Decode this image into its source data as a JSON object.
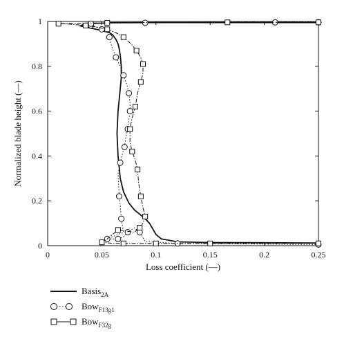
{
  "chart_data": {
    "type": "line",
    "xlabel": "Loss coefficient (—)",
    "ylabel": "Normalized blade height (—)",
    "xlim": [
      0,
      0.25
    ],
    "ylim": [
      0,
      1
    ],
    "xticks": [
      "0",
      "0.05",
      "0.1",
      "0.15",
      "0.2",
      "0.25"
    ],
    "yticks": [
      "0",
      "0.2",
      "0.4",
      "0.6",
      "0.8",
      "1"
    ],
    "grid": false,
    "legend_position": "bottom-left, below plot",
    "series": [
      {
        "name": "Basis",
        "name_sub": "2A",
        "marker": "none",
        "style": "solid",
        "points": [
          [
            0.25,
            0.012
          ],
          [
            0.2,
            0.013
          ],
          [
            0.15,
            0.014
          ],
          [
            0.12,
            0.017
          ],
          [
            0.105,
            0.03
          ],
          [
            0.1,
            0.05
          ],
          [
            0.097,
            0.075
          ],
          [
            0.094,
            0.1
          ],
          [
            0.09,
            0.12
          ],
          [
            0.085,
            0.14
          ],
          [
            0.08,
            0.16
          ],
          [
            0.075,
            0.19
          ],
          [
            0.07,
            0.24
          ],
          [
            0.067,
            0.3
          ],
          [
            0.065,
            0.4
          ],
          [
            0.064,
            0.5
          ],
          [
            0.065,
            0.6
          ],
          [
            0.067,
            0.7
          ],
          [
            0.068,
            0.75
          ],
          [
            0.068,
            0.8
          ],
          [
            0.067,
            0.85
          ],
          [
            0.066,
            0.88
          ],
          [
            0.065,
            0.9
          ],
          [
            0.063,
            0.92
          ],
          [
            0.06,
            0.94
          ],
          [
            0.057,
            0.95
          ],
          [
            0.05,
            0.96
          ],
          [
            0.04,
            0.97
          ],
          [
            0.035,
            0.975
          ],
          [
            0.03,
            0.98
          ],
          [
            0.035,
            0.99
          ],
          [
            0.06,
            0.994
          ],
          [
            0.1,
            0.995
          ],
          [
            0.25,
            0.995
          ]
        ]
      },
      {
        "name": "Bow",
        "name_sub": "F13g1",
        "marker": "circle",
        "style": "dotted",
        "points": [
          [
            0.25,
            0.005
          ],
          [
            0.17,
            0.008
          ],
          [
            0.12,
            0.01
          ],
          [
            0.09,
            0.018
          ],
          [
            0.085,
            0.06
          ],
          [
            0.08,
            0.08
          ],
          [
            0.074,
            0.06
          ],
          [
            0.07,
            0.04
          ],
          [
            0.065,
            0.03
          ],
          [
            0.06,
            0.03
          ],
          [
            0.055,
            0.03
          ],
          [
            0.07,
            0.06
          ],
          [
            0.068,
            0.12
          ],
          [
            0.067,
            0.18
          ],
          [
            0.066,
            0.22
          ],
          [
            0.065,
            0.32
          ],
          [
            0.067,
            0.37
          ],
          [
            0.069,
            0.41
          ],
          [
            0.071,
            0.44
          ],
          [
            0.072,
            0.48
          ],
          [
            0.074,
            0.52
          ],
          [
            0.075,
            0.56
          ],
          [
            0.076,
            0.6
          ],
          [
            0.076,
            0.64
          ],
          [
            0.075,
            0.68
          ],
          [
            0.073,
            0.72
          ],
          [
            0.07,
            0.76
          ],
          [
            0.067,
            0.8
          ],
          [
            0.063,
            0.84
          ],
          [
            0.059,
            0.89
          ],
          [
            0.057,
            0.93
          ],
          [
            0.055,
            0.95
          ],
          [
            0.05,
            0.965
          ],
          [
            0.045,
            0.975
          ],
          [
            0.04,
            0.982
          ],
          [
            0.036,
            0.987
          ],
          [
            0.04,
            0.99
          ],
          [
            0.06,
            0.993
          ],
          [
            0.09,
            0.994
          ],
          [
            0.133,
            0.995
          ],
          [
            0.21,
            0.996
          ],
          [
            0.25,
            0.996
          ]
        ]
      },
      {
        "name": "Bow",
        "name_sub": "F32g",
        "marker": "square",
        "style": "dashdot",
        "points": [
          [
            0.25,
            0.01
          ],
          [
            0.2,
            0.01
          ],
          [
            0.15,
            0.01
          ],
          [
            0.12,
            0.01
          ],
          [
            0.1,
            0.01
          ],
          [
            0.08,
            0.01
          ],
          [
            0.07,
            0.01
          ],
          [
            0.06,
            0.01
          ],
          [
            0.05,
            0.015
          ],
          [
            0.055,
            0.03
          ],
          [
            0.065,
            0.07
          ],
          [
            0.08,
            0.06
          ],
          [
            0.085,
            0.08
          ],
          [
            0.088,
            0.1
          ],
          [
            0.09,
            0.13
          ],
          [
            0.088,
            0.17
          ],
          [
            0.086,
            0.22
          ],
          [
            0.084,
            0.28
          ],
          [
            0.083,
            0.34
          ],
          [
            0.081,
            0.38
          ],
          [
            0.078,
            0.42
          ],
          [
            0.076,
            0.46
          ],
          [
            0.076,
            0.52
          ],
          [
            0.078,
            0.57
          ],
          [
            0.081,
            0.62
          ],
          [
            0.083,
            0.68
          ],
          [
            0.086,
            0.73
          ],
          [
            0.088,
            0.77
          ],
          [
            0.088,
            0.81
          ],
          [
            0.086,
            0.84
          ],
          [
            0.082,
            0.87
          ],
          [
            0.077,
            0.9
          ],
          [
            0.07,
            0.93
          ],
          [
            0.063,
            0.95
          ],
          [
            0.055,
            0.965
          ],
          [
            0.045,
            0.975
          ],
          [
            0.035,
            0.982
          ],
          [
            0.02,
            0.988
          ],
          [
            0.01,
            0.99
          ],
          [
            0.035,
            0.993
          ],
          [
            0.055,
            0.994
          ],
          [
            0.09,
            0.995
          ],
          [
            0.166,
            0.996
          ],
          [
            0.25,
            0.996
          ]
        ]
      }
    ]
  }
}
